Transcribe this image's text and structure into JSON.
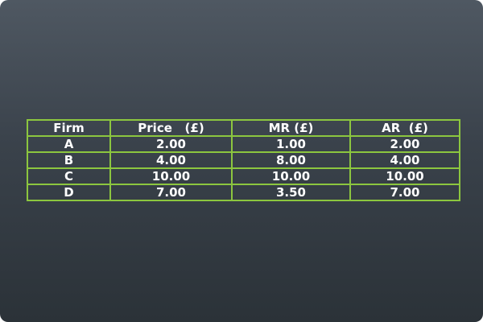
{
  "table": {
    "headers": [
      "Firm",
      "Price   (£)",
      "MR (£)",
      "AR  (£)"
    ],
    "rows": [
      [
        "A",
        "2.00",
        "1.00",
        "2.00"
      ],
      [
        "B",
        "4.00",
        "8.00",
        "4.00"
      ],
      [
        "C",
        "10.00",
        "10.00",
        "10.00"
      ],
      [
        "D",
        "7.00",
        "3.50",
        "7.00"
      ]
    ]
  },
  "colors": {
    "border": "#8cc63f",
    "text": "#ffffff",
    "background_top": "#4f5862",
    "background_bottom": "#2b3238"
  }
}
